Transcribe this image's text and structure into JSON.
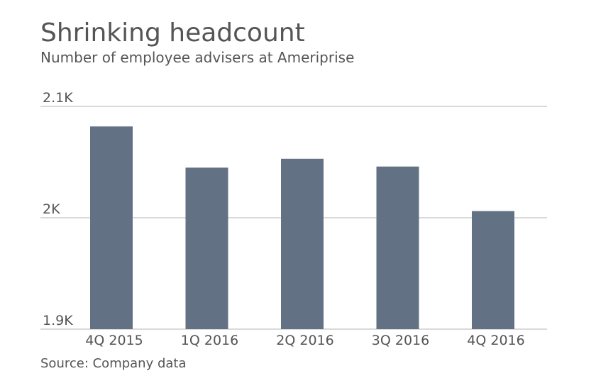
{
  "chart_data": {
    "type": "bar",
    "title": "Shrinking headcount",
    "subtitle": "Number of employee advisers at Ameriprise",
    "source": "Source: Company data",
    "categories": [
      "4Q 2015",
      "1Q 2016",
      "2Q 2016",
      "3Q 2016",
      "4Q 2016"
    ],
    "values": [
      2082,
      2045,
      2053,
      2046,
      2006
    ],
    "color": "#637184",
    "ylim": [
      1900,
      2100
    ],
    "yticks": [
      {
        "value": 1900,
        "label": "1.9K"
      },
      {
        "value": 2000,
        "label": "2K"
      },
      {
        "value": 2100,
        "label": "2.1K"
      }
    ],
    "grid": true
  }
}
